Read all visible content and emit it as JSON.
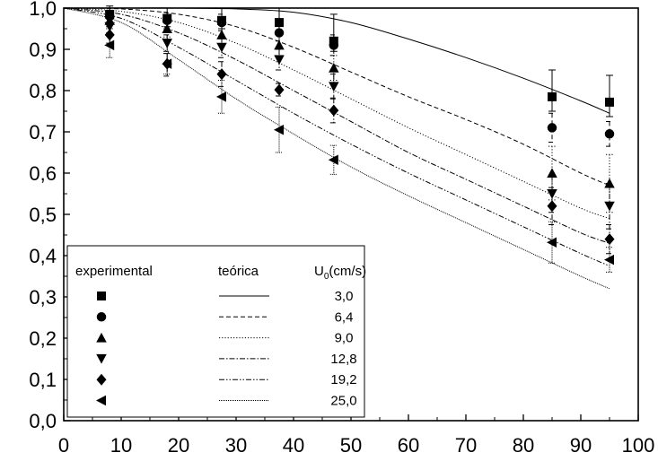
{
  "chart_data": {
    "type": "scatter",
    "title": "",
    "xlabel": "",
    "ylabel": "",
    "xlim": [
      0,
      100
    ],
    "ylim": [
      0.0,
      1.0
    ],
    "x_ticks": [
      "0",
      "10",
      "20",
      "30",
      "40",
      "50",
      "60",
      "70",
      "80",
      "90",
      "100"
    ],
    "y_ticks": [
      "0,0",
      "0,1",
      "0,2",
      "0,3",
      "0,4",
      "0,5",
      "0,6",
      "0,7",
      "0,8",
      "0,9",
      "1,0"
    ],
    "grid": false,
    "legend": {
      "position": "bottom-left",
      "headers": {
        "experimental": "experimental",
        "theoretical": "teórica",
        "u0": "U",
        "u0_sub": "0",
        "u0_unit": "(cm/s)"
      },
      "entries": [
        "3,0",
        "6,4",
        "9,0",
        "12,8",
        "19,2",
        "25,0"
      ]
    },
    "series": [
      {
        "label": "3,0",
        "marker": "square",
        "dash": "solid",
        "x": [
          8,
          18,
          27.5,
          37.5,
          47,
          85,
          95
        ],
        "y": [
          0.985,
          0.975,
          0.97,
          0.965,
          0.92,
          0.785,
          0.772
        ],
        "err_up": [
          0.02,
          0.025,
          0.03,
          0.035,
          0.065,
          0.065,
          0.065
        ],
        "err_dn": [
          0.02,
          0.02,
          0.02,
          0.02,
          0.025,
          0.035,
          0.035
        ],
        "curve_x": [
          0,
          10,
          20,
          30,
          40,
          50,
          60,
          70,
          80,
          90,
          95
        ],
        "curve_y": [
          1.0,
          1.0,
          1.0,
          0.998,
          0.99,
          0.965,
          0.925,
          0.88,
          0.83,
          0.775,
          0.745
        ]
      },
      {
        "label": "6,4",
        "marker": "circle",
        "dash": "dashed",
        "x": [
          8,
          18,
          27.5,
          37.5,
          47,
          85,
          95
        ],
        "y": [
          0.98,
          0.97,
          0.965,
          0.94,
          0.91,
          0.71,
          0.695
        ],
        "err_up": [
          0.02,
          0.02,
          0.02,
          0.02,
          0.025,
          0.035,
          0.03
        ],
        "err_dn": [
          0.02,
          0.02,
          0.02,
          0.02,
          0.025,
          0.035,
          0.03
        ],
        "curve_x": [
          0,
          10,
          20,
          30,
          40,
          50,
          60,
          70,
          80,
          90,
          95
        ],
        "curve_y": [
          1.0,
          0.998,
          0.985,
          0.955,
          0.905,
          0.845,
          0.785,
          0.73,
          0.67,
          0.6,
          0.57
        ]
      },
      {
        "label": "9,0",
        "marker": "triangle-up",
        "dash": "dotted",
        "x": [
          8,
          18,
          27.5,
          37.5,
          47,
          85,
          95
        ],
        "y": [
          0.97,
          0.95,
          0.935,
          0.91,
          0.855,
          0.6,
          0.575
        ],
        "err_up": [
          0.02,
          0.02,
          0.025,
          0.025,
          0.03,
          0.065,
          0.07
        ],
        "err_dn": [
          0.02,
          0.02,
          0.025,
          0.025,
          0.03,
          0.065,
          0.07
        ],
        "curve_x": [
          0,
          10,
          20,
          30,
          40,
          50,
          60,
          70,
          80,
          90,
          95
        ],
        "curve_y": [
          1.0,
          0.992,
          0.965,
          0.915,
          0.85,
          0.78,
          0.71,
          0.645,
          0.58,
          0.515,
          0.49
        ]
      },
      {
        "label": "12,8",
        "marker": "triangle-down",
        "dash": "dashdot",
        "x": [
          8,
          18,
          27.5,
          37.5,
          47,
          85,
          95
        ],
        "y": [
          0.955,
          0.915,
          0.905,
          0.875,
          0.81,
          0.55,
          0.52
        ],
        "err_up": [
          0.02,
          0.02,
          0.025,
          0.025,
          0.03,
          0.045,
          0.055
        ],
        "err_dn": [
          0.02,
          0.02,
          0.025,
          0.025,
          0.03,
          0.045,
          0.055
        ],
        "curve_x": [
          0,
          10,
          20,
          30,
          40,
          50,
          60,
          70,
          80,
          90,
          95
        ],
        "curve_y": [
          1.0,
          0.985,
          0.94,
          0.875,
          0.8,
          0.725,
          0.65,
          0.585,
          0.52,
          0.455,
          0.43
        ]
      },
      {
        "label": "19,2",
        "marker": "diamond",
        "dash": "dashdotdot",
        "x": [
          8,
          18,
          27.5,
          37.5,
          47,
          85,
          95
        ],
        "y": [
          0.935,
          0.865,
          0.84,
          0.802,
          0.752,
          0.52,
          0.44
        ],
        "err_up": [
          0.02,
          0.025,
          0.03,
          0.015,
          0.03,
          0.045,
          0.035
        ],
        "err_dn": [
          0.02,
          0.03,
          0.03,
          0.015,
          0.03,
          0.045,
          0.035
        ],
        "curve_x": [
          0,
          10,
          20,
          30,
          40,
          50,
          60,
          70,
          80,
          90,
          95
        ],
        "curve_y": [
          1.0,
          0.975,
          0.905,
          0.825,
          0.745,
          0.67,
          0.6,
          0.535,
          0.47,
          0.405,
          0.375
        ]
      },
      {
        "label": "25,0",
        "marker": "triangle-left",
        "dash": "densedot",
        "x": [
          8,
          18,
          27.5,
          37.5,
          47,
          85,
          95
        ],
        "y": [
          0.91,
          0.865,
          0.785,
          0.705,
          0.632,
          0.432,
          0.39
        ],
        "err_up": [
          0.03,
          0.025,
          0.04,
          0.055,
          0.035,
          0.05,
          0.03
        ],
        "err_dn": [
          0.03,
          0.025,
          0.04,
          0.055,
          0.035,
          0.05,
          0.03
        ],
        "curve_x": [
          0,
          10,
          20,
          30,
          40,
          50,
          60,
          70,
          80,
          90,
          95
        ],
        "curve_y": [
          1.0,
          0.965,
          0.875,
          0.78,
          0.695,
          0.615,
          0.545,
          0.48,
          0.415,
          0.35,
          0.32
        ]
      }
    ]
  }
}
